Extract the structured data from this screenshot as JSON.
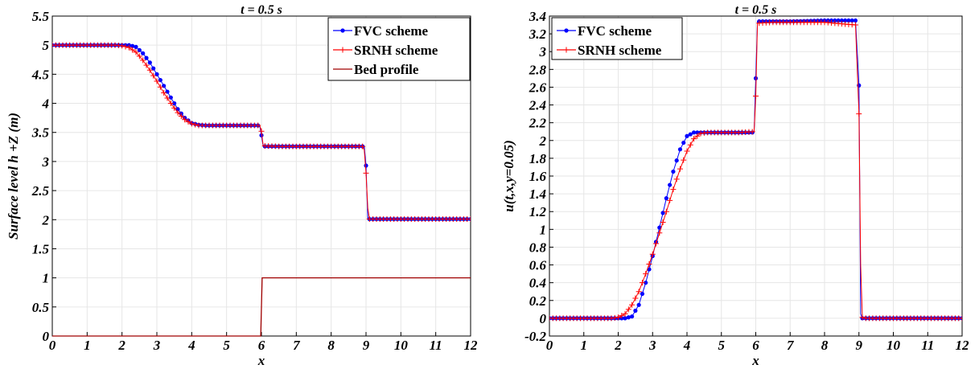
{
  "chart_data": [
    {
      "type": "line",
      "title": "t = 0.5 s",
      "xlabel": "x",
      "ylabel": "Surface level h +Z (m)",
      "xlim": [
        0,
        12
      ],
      "ylim": [
        0,
        5.5
      ],
      "xticks": [
        "0",
        "1",
        "2",
        "3",
        "4",
        "5",
        "6",
        "7",
        "8",
        "9",
        "10",
        "11",
        "12"
      ],
      "yticks": [
        "0",
        "0.5",
        "1",
        "1.5",
        "2",
        "2.5",
        "3",
        "3.5",
        "4",
        "4.5",
        "5",
        "5.5"
      ],
      "grid": true,
      "legend_position": "top-right",
      "series": [
        {
          "name": "FVC scheme",
          "color": "#0000ff",
          "marker": "circle",
          "x": [
            0,
            2.0,
            2.2,
            2.4,
            2.6,
            2.8,
            3.0,
            3.2,
            3.4,
            3.6,
            3.8,
            4.0,
            4.2,
            4.4,
            4.6,
            5.0,
            5.5,
            5.95,
            6.0,
            6.05,
            6.5,
            7.0,
            8.0,
            8.95,
            9.0,
            9.05,
            9.5,
            10,
            11,
            12
          ],
          "y": [
            5,
            5,
            5,
            4.97,
            4.86,
            4.7,
            4.5,
            4.3,
            4.1,
            3.9,
            3.75,
            3.66,
            3.63,
            3.62,
            3.62,
            3.62,
            3.62,
            3.62,
            3.45,
            3.26,
            3.26,
            3.26,
            3.26,
            3.26,
            2.93,
            2.01,
            2.01,
            2.01,
            2.01,
            2.01
          ]
        },
        {
          "name": "SRNH scheme",
          "color": "#ff0000",
          "marker": "plus",
          "x": [
            0,
            1.8,
            2.0,
            2.2,
            2.4,
            2.6,
            2.8,
            3.0,
            3.2,
            3.4,
            3.6,
            3.8,
            4.0,
            4.2,
            4.4,
            4.6,
            5.0,
            5.5,
            5.95,
            6.0,
            6.05,
            6.5,
            7.0,
            8.0,
            8.9,
            8.95,
            9.0,
            9.05,
            9.1,
            9.5,
            10,
            11,
            12
          ],
          "y": [
            5,
            5,
            4.99,
            4.96,
            4.88,
            4.74,
            4.57,
            4.38,
            4.18,
            4.0,
            3.84,
            3.72,
            3.65,
            3.62,
            3.62,
            3.62,
            3.62,
            3.62,
            3.62,
            3.52,
            3.27,
            3.26,
            3.26,
            3.26,
            3.26,
            3.2,
            2.8,
            2.2,
            2.01,
            2.01,
            2.01,
            2.01,
            2.01
          ]
        },
        {
          "name": "Bed profile",
          "color": "#a00000",
          "marker": "none",
          "x": [
            0,
            5.98,
            6.02,
            12
          ],
          "y": [
            0,
            0,
            1,
            1
          ]
        }
      ]
    },
    {
      "type": "line",
      "title": "t = 0.5 s",
      "xlabel": "x",
      "ylabel": "u(t,x,y=0.05)",
      "xlim": [
        0,
        12
      ],
      "ylim": [
        -0.2,
        3.4
      ],
      "xticks": [
        "0",
        "1",
        "2",
        "3",
        "4",
        "5",
        "6",
        "7",
        "8",
        "9",
        "10",
        "11",
        "12"
      ],
      "yticks": [
        "-0.2",
        "0",
        "0.2",
        "0.4",
        "0.6",
        "0.8",
        "1",
        "1.2",
        "1.4",
        "1.6",
        "1.8",
        "2",
        "2.2",
        "2.4",
        "2.6",
        "2.8",
        "3",
        "3.2",
        "3.4"
      ],
      "grid": true,
      "legend_position": "top-left",
      "series": [
        {
          "name": "FVC scheme",
          "color": "#0000ff",
          "marker": "circle",
          "x": [
            0,
            2.2,
            2.4,
            2.6,
            2.8,
            3.0,
            3.2,
            3.4,
            3.6,
            3.8,
            4.0,
            4.2,
            4.4,
            4.6,
            5.0,
            5.5,
            5.95,
            6.0,
            6.05,
            6.5,
            7.0,
            8.0,
            8.9,
            9.0,
            9.05,
            9.1,
            9.5,
            10,
            11,
            12
          ],
          "y": [
            0,
            0,
            0.02,
            0.15,
            0.4,
            0.7,
            1.02,
            1.35,
            1.65,
            1.9,
            2.05,
            2.09,
            2.09,
            2.09,
            2.09,
            2.09,
            2.09,
            2.7,
            3.34,
            3.34,
            3.34,
            3.35,
            3.35,
            2.62,
            0.05,
            0,
            0,
            0,
            0,
            0
          ],
          "marker_step": 0.1
        },
        {
          "name": "SRNH scheme",
          "color": "#ff0000",
          "marker": "plus",
          "x": [
            0,
            1.8,
            2.0,
            2.2,
            2.4,
            2.6,
            2.8,
            3.0,
            3.2,
            3.4,
            3.6,
            3.8,
            4.0,
            4.2,
            4.4,
            4.6,
            5.0,
            5.5,
            5.95,
            6.0,
            6.05,
            6.5,
            7.0,
            8.0,
            8.9,
            9.0,
            9.05,
            9.1,
            9.15,
            9.5,
            10,
            11,
            12
          ],
          "y": [
            0,
            0,
            0.01,
            0.05,
            0.15,
            0.3,
            0.5,
            0.72,
            0.96,
            1.2,
            1.45,
            1.68,
            1.88,
            2.02,
            2.08,
            2.09,
            2.09,
            2.09,
            2.1,
            2.5,
            3.32,
            3.33,
            3.33,
            3.33,
            3.3,
            2.3,
            0.6,
            0.01,
            0,
            0,
            0,
            0,
            0
          ],
          "marker_step": 0.1
        }
      ]
    }
  ]
}
